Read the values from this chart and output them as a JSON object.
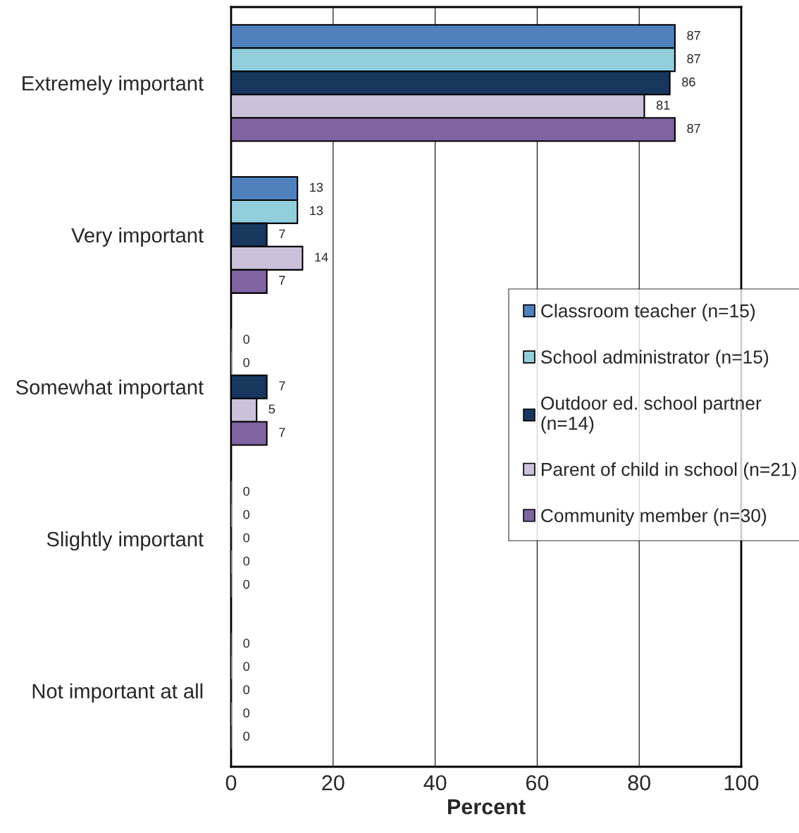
{
  "chart_data": {
    "type": "bar",
    "orientation": "horizontal",
    "categories": [
      "Extremely important",
      "Very important",
      "Somewhat important",
      "Slightly important",
      "Not important at all"
    ],
    "series": [
      {
        "name": "Classroom teacher (n=15)",
        "color": "#4f81bd",
        "values": [
          87,
          13,
          0,
          0,
          0
        ]
      },
      {
        "name": "School administrator (n=15)",
        "color": "#92cddc",
        "values": [
          87,
          13,
          0,
          0,
          0
        ]
      },
      {
        "name": "Outdoor ed. school partner (n=14)",
        "color": "#17375e",
        "values": [
          86,
          7,
          7,
          0,
          0
        ]
      },
      {
        "name": "Parent of child in school (n=21)",
        "color": "#ccc1da",
        "values": [
          81,
          14,
          5,
          0,
          0
        ]
      },
      {
        "name": "Community member (n=30)",
        "color": "#8064a2",
        "values": [
          87,
          7,
          7,
          0,
          0
        ]
      }
    ],
    "xlabel": "Percent",
    "xlim": [
      0,
      100
    ],
    "xticks": [
      0,
      20,
      40,
      60,
      80,
      100
    ],
    "grid": "x",
    "legend": "right",
    "data_labels": true
  }
}
